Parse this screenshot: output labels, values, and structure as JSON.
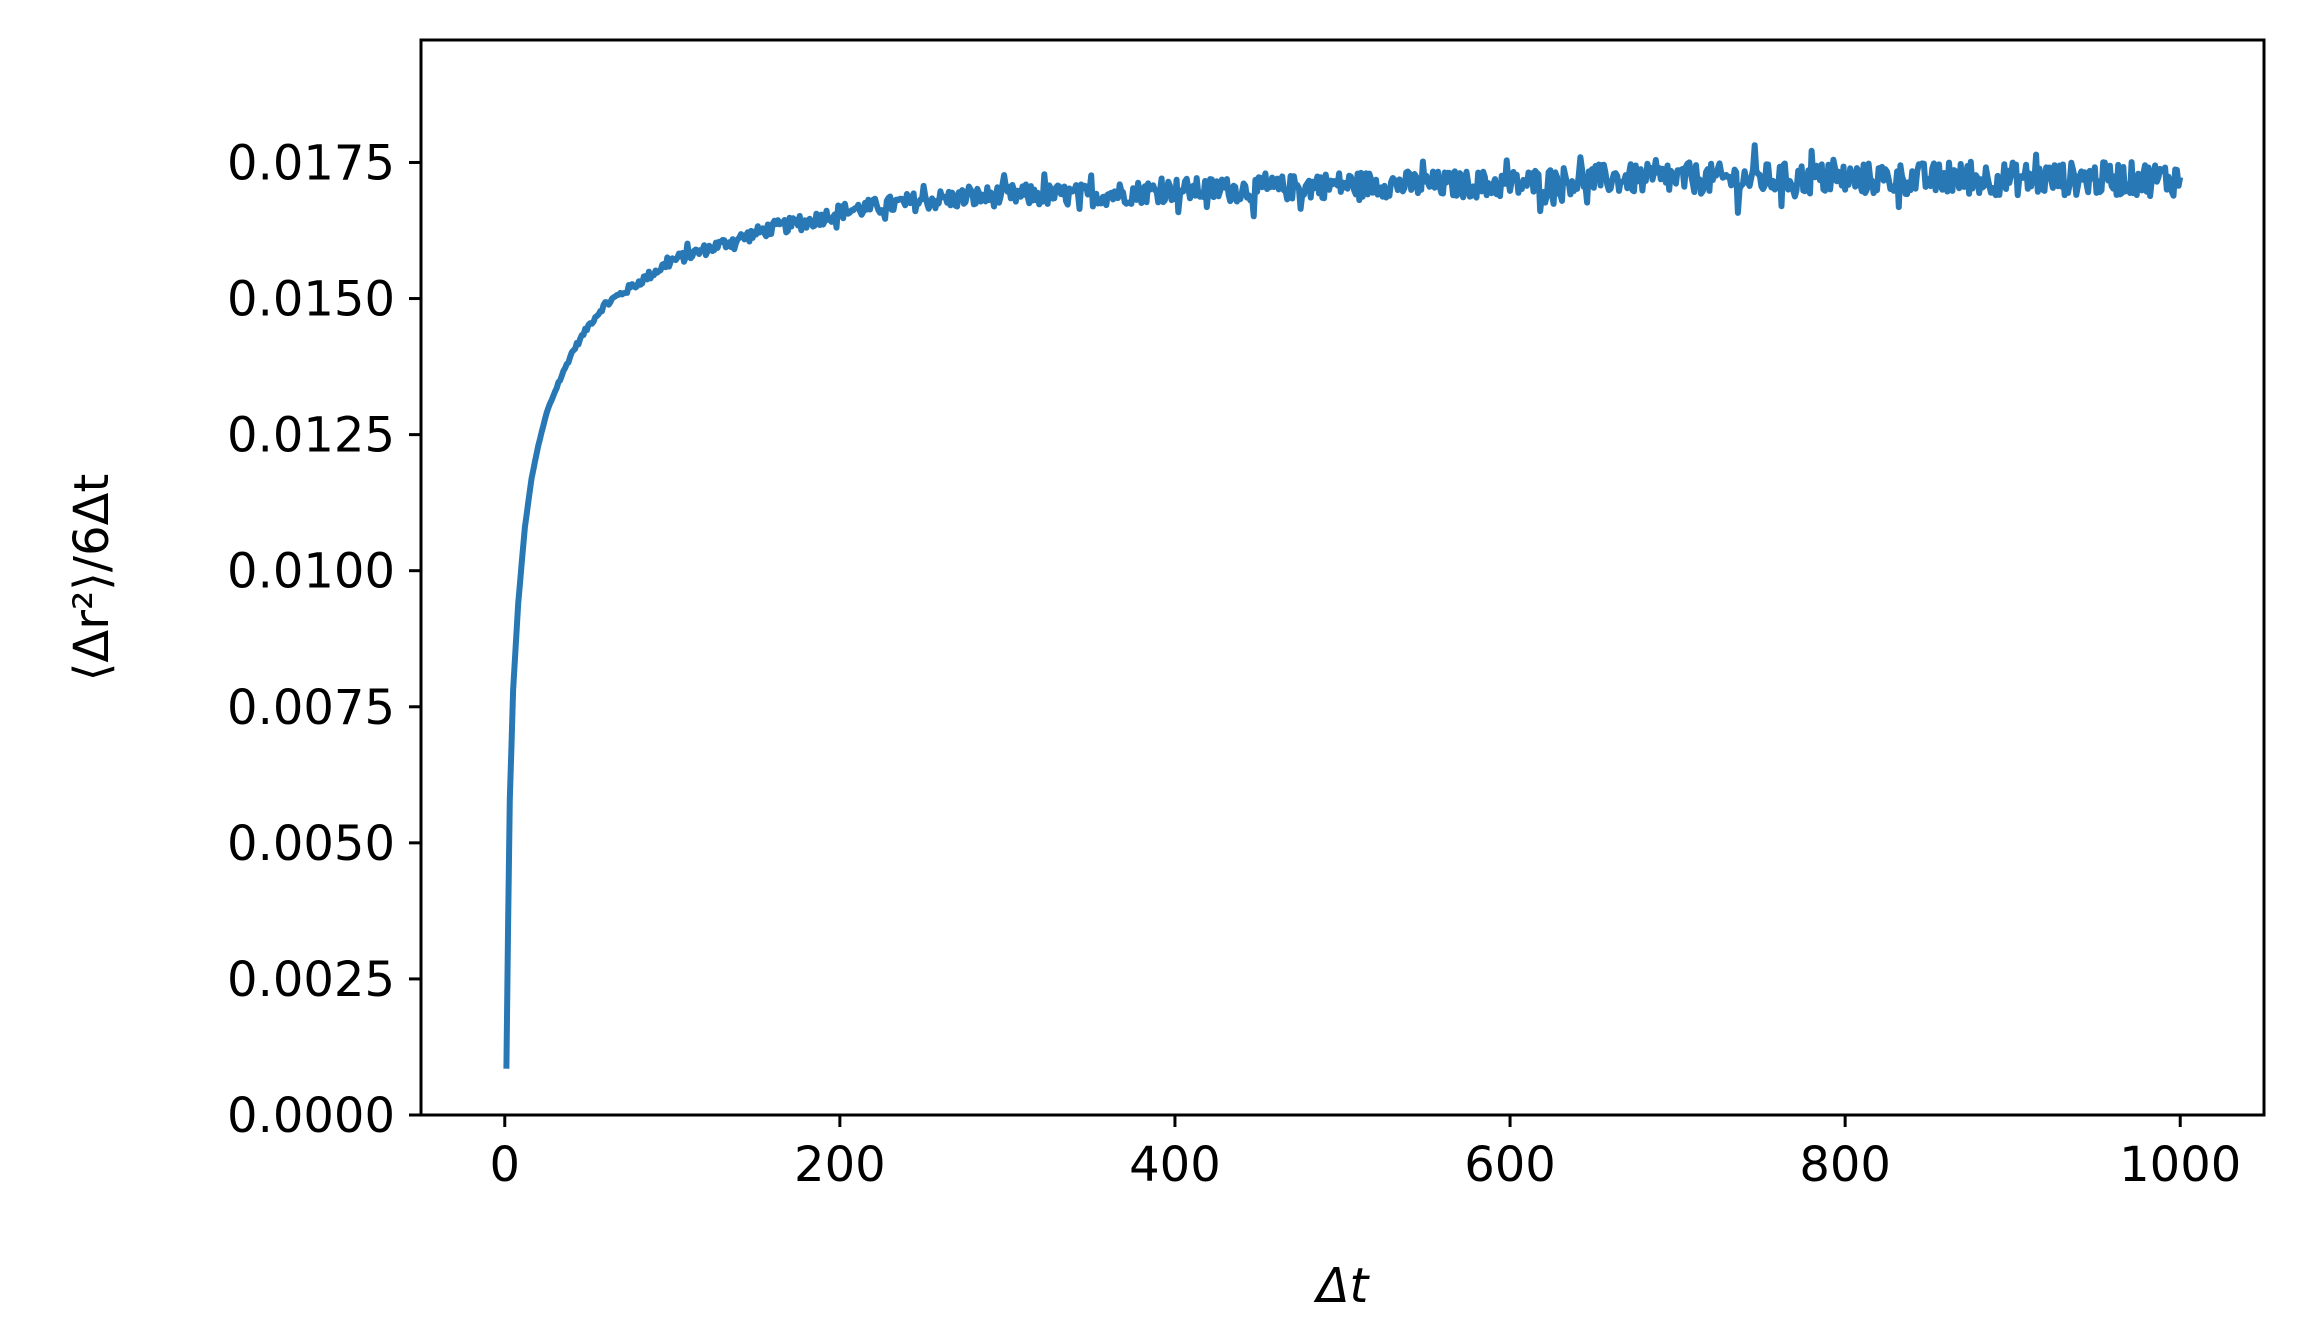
{
  "chart_data": {
    "type": "line",
    "title": "",
    "xlabel": "Δt",
    "ylabel": "⟨Δr²⟩/6Δt",
    "xlim": [
      -50,
      1050
    ],
    "ylim": [
      0,
      0.01975
    ],
    "xticks": [
      0,
      200,
      400,
      600,
      800,
      1000
    ],
    "xtick_labels": [
      "0",
      "200",
      "400",
      "600",
      "800",
      "1000"
    ],
    "yticks": [
      0,
      0.0025,
      0.005,
      0.0075,
      0.01,
      0.0125,
      0.015,
      0.0175
    ],
    "ytick_labels": [
      "0.0000",
      "0.0025",
      "0.0050",
      "0.0075",
      "0.0100",
      "0.0125",
      "0.0150",
      "0.0175"
    ],
    "grid": false,
    "legend": "none",
    "series": [
      {
        "color": "#2878b5",
        "x": [
          1,
          2,
          3,
          5,
          8,
          12,
          16,
          20,
          25,
          30,
          40,
          50,
          60,
          70,
          80,
          90,
          100,
          120,
          140,
          160,
          180,
          200,
          250,
          300,
          350,
          400,
          450,
          500,
          550,
          600,
          650,
          700,
          750,
          800,
          850,
          900,
          950,
          1000
        ],
        "y": [
          0.00085,
          0.0035,
          0.0058,
          0.0078,
          0.0094,
          0.0108,
          0.0117,
          0.0123,
          0.0129,
          0.0133,
          0.014,
          0.0145,
          0.0149,
          0.0151,
          0.0153,
          0.0155,
          0.0157,
          0.0159,
          0.0161,
          0.0163,
          0.0164,
          0.0166,
          0.0168,
          0.0169,
          0.0169,
          0.017,
          0.017,
          0.0171,
          0.0171,
          0.0171,
          0.0172,
          0.0172,
          0.0172,
          0.0172,
          0.0172,
          0.0172,
          0.0172,
          0.0172
        ],
        "noise_amplitude": [
          0,
          0,
          0,
          0,
          0,
          0,
          0,
          0,
          2e-05,
          3e-05,
          4e-05,
          5e-05,
          6e-05,
          7e-05,
          8e-05,
          9e-05,
          0.0001,
          0.00011,
          0.00012,
          0.00013,
          0.00014,
          0.00015,
          0.00018,
          0.0002,
          0.00021,
          0.00022,
          0.00023,
          0.00024,
          0.00025,
          0.00026,
          0.00027,
          0.00028,
          0.00029,
          0.0003,
          0.0003,
          0.00031,
          0.00031,
          0.00032
        ]
      }
    ]
  }
}
